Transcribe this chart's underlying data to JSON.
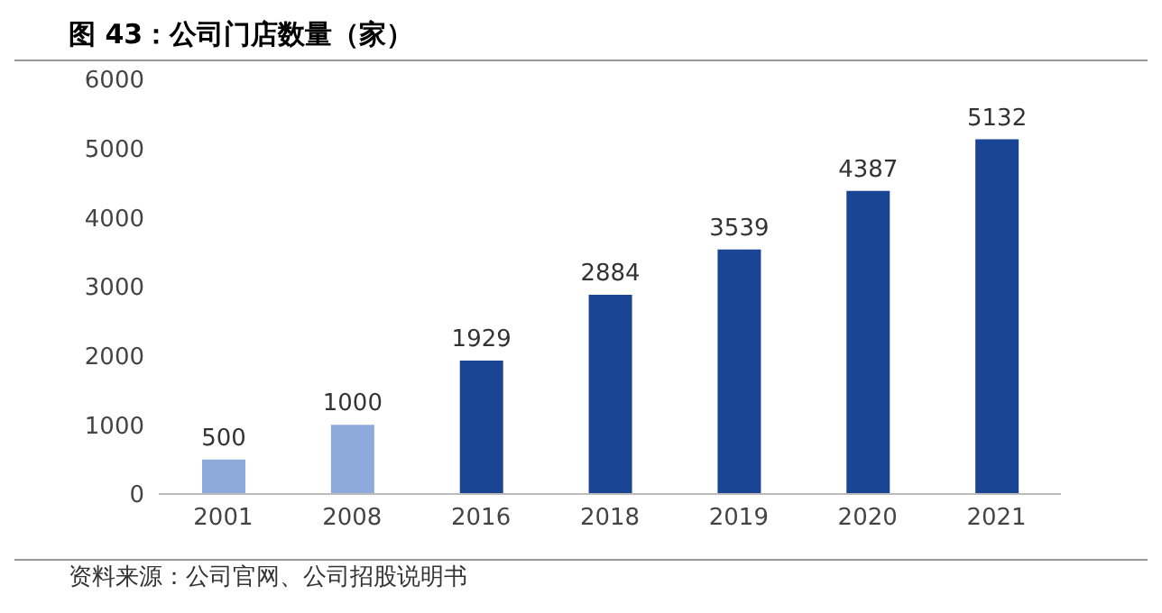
{
  "chart_data": {
    "type": "bar",
    "title": "图 43：公司门店数量（家）",
    "categories": [
      "2001",
      "2008",
      "2016",
      "2018",
      "2019",
      "2020",
      "2021"
    ],
    "values": [
      500,
      1000,
      1929,
      2884,
      3539,
      4387,
      5132
    ],
    "colors": [
      "#8eaadc",
      "#8eaadc",
      "#1a4594",
      "#1a4594",
      "#1a4594",
      "#1a4594",
      "#1a4594"
    ],
    "ylim": [
      0,
      6000
    ],
    "yticks": [
      0,
      1000,
      2000,
      3000,
      4000,
      5000,
      6000
    ],
    "grid": false,
    "data_labels": true,
    "annotations": [
      "资料来源：公司官网、公司招股说明书"
    ]
  }
}
